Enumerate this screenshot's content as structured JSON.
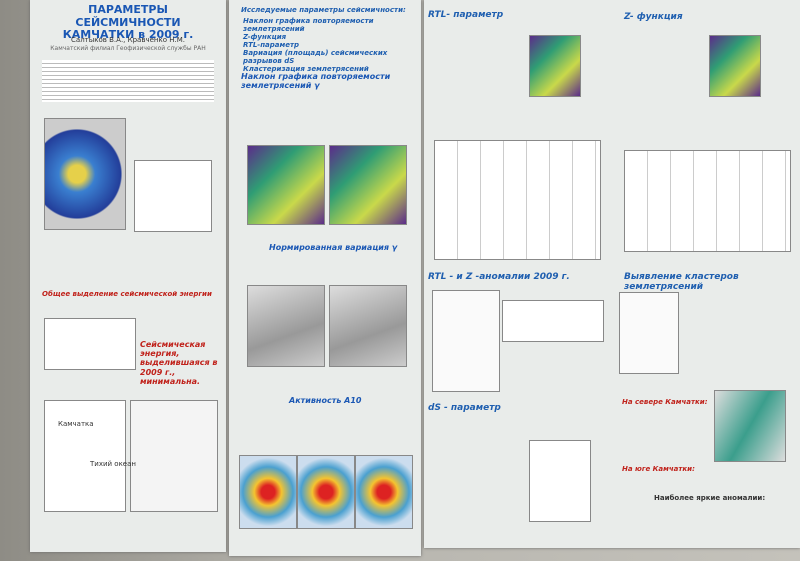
{
  "posters": [
    {
      "title": "ПАРАМЕТРЫ СЕЙСМИЧНОСТИ КАМЧАТКИ в 2009 г.",
      "authors": "Салтыков В.А., Кравченко Н.М.",
      "affiliation": "Камчатский филиал Геофизической службы РАН",
      "sections": [
        {
          "heading": "Общее выделение сейсмической энергии"
        },
        {
          "heading": "Сейсмическая энергия, выделившаяся в 2009 г., минимальна."
        }
      ],
      "labels": [
        "Камчатка",
        "Тихий океан"
      ]
    },
    {
      "intro": "Исследуемые параметры сейсмичности:",
      "list": [
        "Наклон графика повторяемости землетрясений",
        "Z-функция",
        "RTL-параметр",
        "Вариация (площадь) сейсмических разрывов dS",
        "Кластеризация землетрясений"
      ],
      "sections": [
        {
          "heading": "Наклон графика повторяемости землетрясений γ"
        },
        {
          "heading": "Нормированная вариация γ"
        },
        {
          "heading": "Активность A10"
        }
      ]
    },
    {
      "sections": [
        {
          "heading": "RTL- параметр"
        },
        {
          "heading": "Z- функция"
        },
        {
          "heading": "RTL - и Z -аномалии 2009 г."
        },
        {
          "heading": "Выявление кластеров землетрясений"
        },
        {
          "heading": "dS - параметр"
        },
        {
          "heading": "На севере Камчатки:"
        },
        {
          "heading": "На юге Камчатки:"
        },
        {
          "heading": "Наиболее яркие аномалии:"
        }
      ]
    }
  ]
}
